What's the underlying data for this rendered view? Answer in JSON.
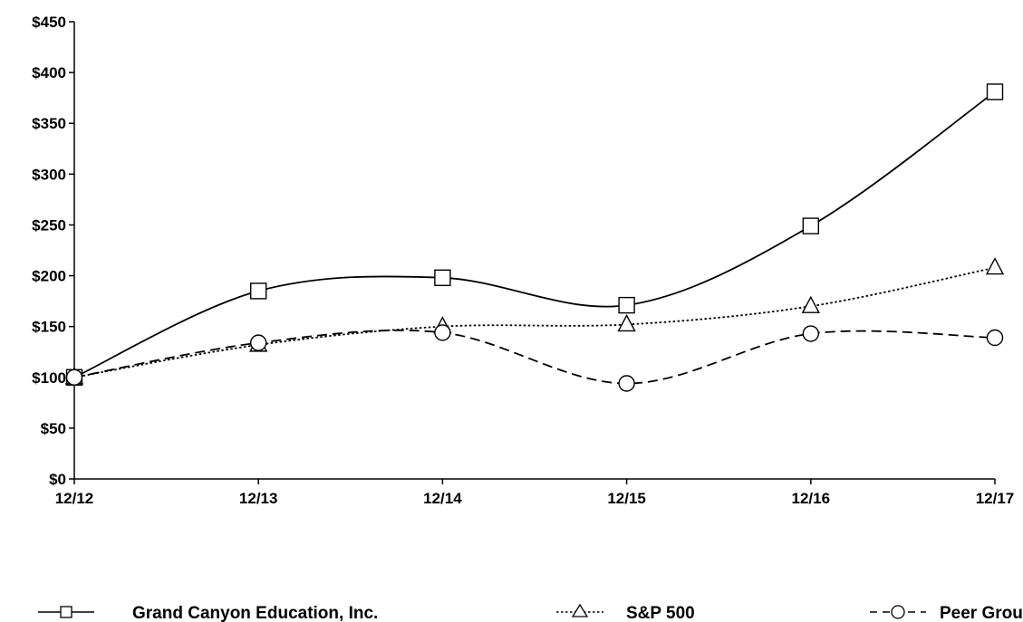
{
  "chart_data": {
    "type": "line",
    "x": [
      "12/12",
      "12/13",
      "12/14",
      "12/15",
      "12/16",
      "12/17"
    ],
    "ylim": [
      0,
      450
    ],
    "yticks": [
      0,
      50,
      100,
      150,
      200,
      250,
      300,
      350,
      400,
      450
    ],
    "ytick_labels": [
      "$0",
      "$50",
      "$100",
      "$150",
      "$200",
      "$250",
      "$300",
      "$350",
      "$400",
      "$450"
    ],
    "grid": false,
    "legend": "bottom",
    "series": [
      {
        "name": "Grand Canyon Education, Inc.",
        "marker": "square",
        "dash": "solid",
        "values": [
          100,
          185,
          198,
          171,
          249,
          381
        ]
      },
      {
        "name": "S&P 500",
        "marker": "triangle",
        "dash": "dotted",
        "values": [
          100,
          132,
          150,
          152,
          170,
          208
        ]
      },
      {
        "name": "Peer Group",
        "marker": "circle",
        "dash": "dashed",
        "values": [
          100,
          134,
          144,
          94,
          143,
          139
        ]
      }
    ]
  }
}
